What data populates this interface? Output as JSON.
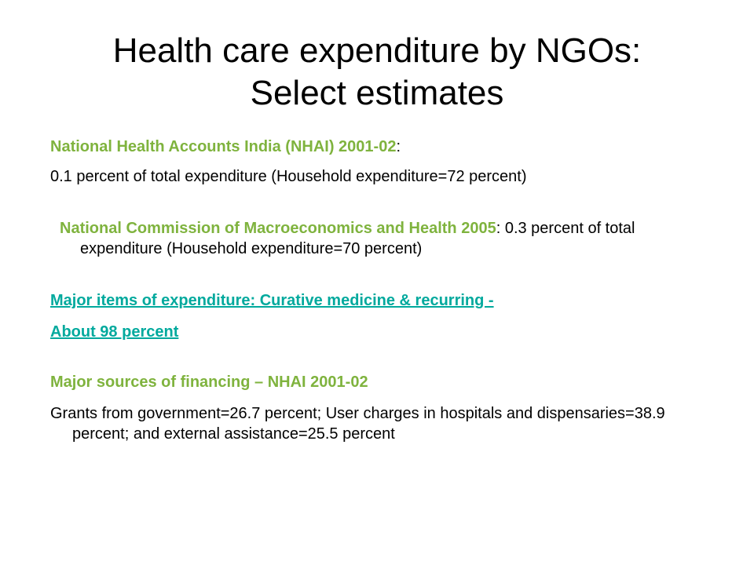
{
  "slide": {
    "title_line1": "Health care expenditure by NGOs:",
    "title_line2": "Select estimates",
    "nhai_heading": "National Health Accounts India (NHAI) 2001-02",
    "nhai_colon": ":",
    "nhai_text": "0.1 percent of total expenditure (Household expenditure=72 percent)",
    "ncmh_heading": "National Commission of Macroeconomics and Health 2005",
    "ncmh_text": ": 0.3 percent of total expenditure (Household expenditure=70 percent)",
    "major_items_line1": "Major items of expenditure: Curative medicine & recurring -",
    "major_items_line2": "About 98 percent",
    "sources_heading": "Major sources of financing – NHAI 2001-02",
    "sources_text": "Grants from government=26.7 percent; User charges in hospitals and dispensaries=38.9 percent; and external assistance=25.5 percent"
  },
  "colors": {
    "heading_green": "#7fb33e",
    "link_teal": "#00a99d",
    "text": "#000000",
    "background": "#ffffff"
  }
}
